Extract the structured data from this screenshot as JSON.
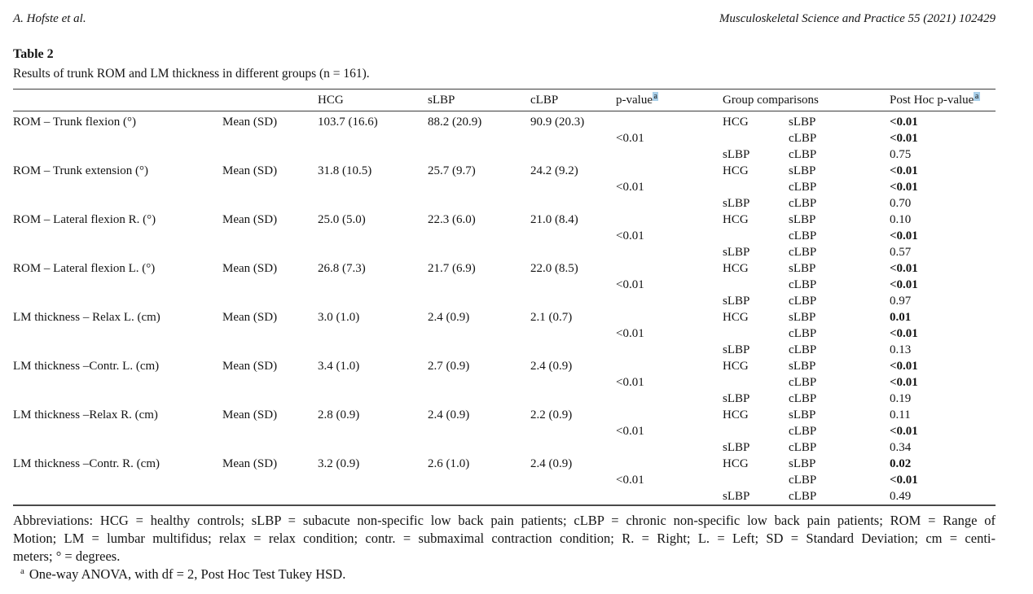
{
  "page_header": {
    "author": "A. Hofste et al.",
    "journal": "Musculoskeletal Science and Practice 55 (2021) 102429"
  },
  "table": {
    "label": "Table 2",
    "caption": "Results of trunk ROM and LM thickness in different groups (n = 161).",
    "footnote_marker": "a",
    "columns": {
      "hcg": "HCG",
      "slbp": "sLBP",
      "clbp": "cLBP",
      "p_value": "p-value",
      "group_comparisons": "Group comparisons",
      "post_hoc": "Post Hoc p-value"
    },
    "rows": [
      {
        "label": "ROM – Trunk flexion (°)",
        "stat": "Mean (SD)",
        "hcg": "103.7 (16.6)",
        "slbp": "88.2 (20.9)",
        "clbp": "90.9 (20.3)",
        "p_value": "<0.01",
        "comparisons": [
          {
            "g1": "HCG",
            "g2": "sLBP",
            "p": "<0.01",
            "bold": true
          },
          {
            "g1": "",
            "g2": "cLBP",
            "p": "<0.01",
            "bold": true
          },
          {
            "g1": "sLBP",
            "g2": "cLBP",
            "p": "0.75",
            "bold": false
          }
        ]
      },
      {
        "label": "ROM – Trunk extension (°)",
        "stat": "Mean (SD)",
        "hcg": "31.8 (10.5)",
        "slbp": "25.7 (9.7)",
        "clbp": "24.2 (9.2)",
        "p_value": "<0.01",
        "comparisons": [
          {
            "g1": "HCG",
            "g2": "sLBP",
            "p": "<0.01",
            "bold": true
          },
          {
            "g1": "",
            "g2": "cLBP",
            "p": "<0.01",
            "bold": true
          },
          {
            "g1": "sLBP",
            "g2": "cLBP",
            "p": "0.70",
            "bold": false
          }
        ]
      },
      {
        "label": "ROM – Lateral flexion R. (°)",
        "stat": "Mean (SD)",
        "hcg": "25.0 (5.0)",
        "slbp": "22.3 (6.0)",
        "clbp": "21.0 (8.4)",
        "p_value": "<0.01",
        "comparisons": [
          {
            "g1": "HCG",
            "g2": "sLBP",
            "p": "0.10",
            "bold": false
          },
          {
            "g1": "",
            "g2": "cLBP",
            "p": "<0.01",
            "bold": true
          },
          {
            "g1": "sLBP",
            "g2": "cLBP",
            "p": "0.57",
            "bold": false
          }
        ]
      },
      {
        "label": "ROM – Lateral flexion L. (°)",
        "stat": "Mean (SD)",
        "hcg": "26.8 (7.3)",
        "slbp": "21.7 (6.9)",
        "clbp": "22.0 (8.5)",
        "p_value": "<0.01",
        "comparisons": [
          {
            "g1": "HCG",
            "g2": "sLBP",
            "p": "<0.01",
            "bold": true
          },
          {
            "g1": "",
            "g2": "cLBP",
            "p": "<0.01",
            "bold": true
          },
          {
            "g1": "sLBP",
            "g2": "cLBP",
            "p": "0.97",
            "bold": false
          }
        ]
      },
      {
        "label": "LM thickness – Relax L. (cm)",
        "stat": "Mean (SD)",
        "hcg": "3.0 (1.0)",
        "slbp": "2.4 (0.9)",
        "clbp": "2.1 (0.7)",
        "p_value": "<0.01",
        "comparisons": [
          {
            "g1": "HCG",
            "g2": "sLBP",
            "p": "0.01",
            "bold": true
          },
          {
            "g1": "",
            "g2": "cLBP",
            "p": "<0.01",
            "bold": true
          },
          {
            "g1": "sLBP",
            "g2": "cLBP",
            "p": "0.13",
            "bold": false
          }
        ]
      },
      {
        "label": "LM thickness –Contr. L. (cm)",
        "stat": "Mean (SD)",
        "hcg": "3.4 (1.0)",
        "slbp": "2.7 (0.9)",
        "clbp": "2.4 (0.9)",
        "p_value": "<0.01",
        "comparisons": [
          {
            "g1": "HCG",
            "g2": "sLBP",
            "p": "<0.01",
            "bold": true
          },
          {
            "g1": "",
            "g2": "cLBP",
            "p": "<0.01",
            "bold": true
          },
          {
            "g1": "sLBP",
            "g2": "cLBP",
            "p": "0.19",
            "bold": false
          }
        ]
      },
      {
        "label": "LM thickness –Relax R. (cm)",
        "stat": "Mean (SD)",
        "hcg": "2.8 (0.9)",
        "slbp": "2.4 (0.9)",
        "clbp": "2.2 (0.9)",
        "p_value": "<0.01",
        "comparisons": [
          {
            "g1": "HCG",
            "g2": "sLBP",
            "p": "0.11",
            "bold": false
          },
          {
            "g1": "",
            "g2": "cLBP",
            "p": "<0.01",
            "bold": true
          },
          {
            "g1": "sLBP",
            "g2": "cLBP",
            "p": "0.34",
            "bold": false
          }
        ]
      },
      {
        "label": "LM thickness –Contr. R. (cm)",
        "stat": "Mean (SD)",
        "hcg": "3.2 (0.9)",
        "slbp": "2.6 (1.0)",
        "clbp": "2.4 (0.9)",
        "p_value": "<0.01",
        "comparisons": [
          {
            "g1": "HCG",
            "g2": "sLBP",
            "p": "0.02",
            "bold": true
          },
          {
            "g1": "",
            "g2": "cLBP",
            "p": "<0.01",
            "bold": true
          },
          {
            "g1": "sLBP",
            "g2": "cLBP",
            "p": "0.49",
            "bold": false
          }
        ]
      }
    ]
  },
  "notes": {
    "abbreviations_lines": [
      "Abbreviations: HCG = healthy controls; sLBP = subacute non-specific low back pain patients; cLBP = chronic non-specific low back pain patients; ROM = Range of",
      "Motion; LM = lumbar multifidus; relax = relax condition; contr. = submaximal contraction condition; R. = Right; L. = Left; SD = Standard Deviation; cm = centi-",
      "meters; ° = degrees."
    ],
    "footnote": {
      "marker": "a",
      "text": "One-way ANOVA, with df = 2, Post Hoc Test Tukey HSD."
    }
  }
}
